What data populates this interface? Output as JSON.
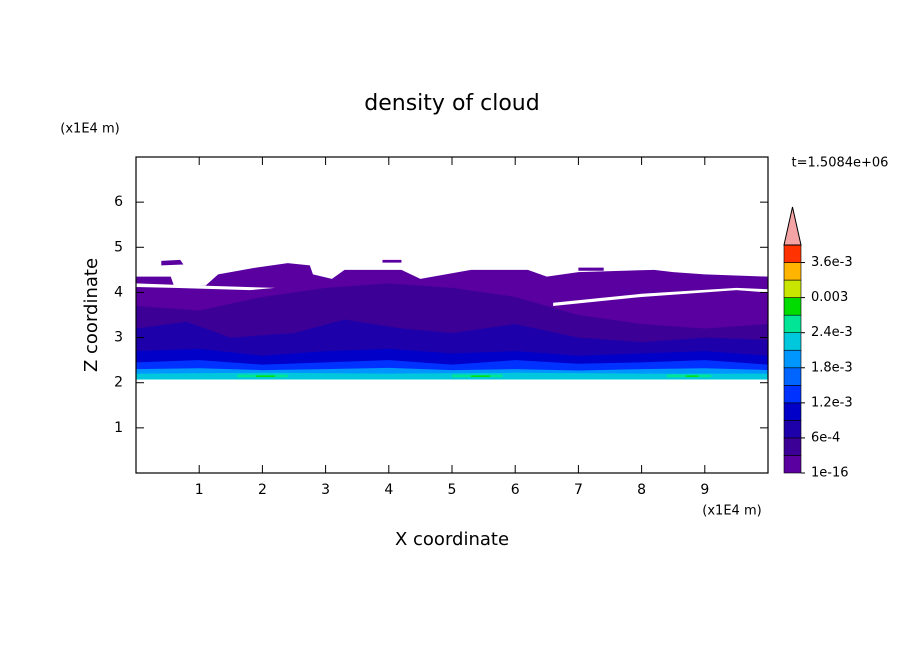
{
  "chart_data": {
    "type": "contour",
    "title": "density of cloud",
    "x_label": "X coordinate",
    "y_label": "Z coordinate",
    "x_unit": "(x1E4 m)",
    "y_unit": "(x1E4 m)",
    "annotation": "t=1.5084e+06",
    "xlim": [
      0,
      10
    ],
    "ylim": [
      0,
      7
    ],
    "xticks": [
      1,
      2,
      3,
      4,
      5,
      6,
      7,
      8,
      9
    ],
    "yticks": [
      1,
      2,
      3,
      4,
      5,
      6
    ],
    "colorbar": {
      "clim": [
        1e-16,
        0.0039
      ],
      "ticks": [
        1e-16,
        {
          "value": 0.0006,
          "label": "6e-4"
        },
        {
          "value": 0.0012,
          "label": "1.2e-3"
        },
        {
          "value": 0.0018,
          "label": "1.8e-3"
        },
        {
          "value": 0.0024,
          "label": "2.4e-3"
        },
        0.003,
        {
          "value": 0.0036,
          "label": "3.6e-3"
        }
      ],
      "colors": [
        "#5a00a0",
        "#3c0096",
        "#1e00aa",
        "#0000c8",
        "#0032ff",
        "#0064ff",
        "#0096ff",
        "#00c8dc",
        "#00e696",
        "#00dc00",
        "#c8e600",
        "#ffb400",
        "#ff3200"
      ],
      "extend_color": "#f4a4a4"
    }
  }
}
